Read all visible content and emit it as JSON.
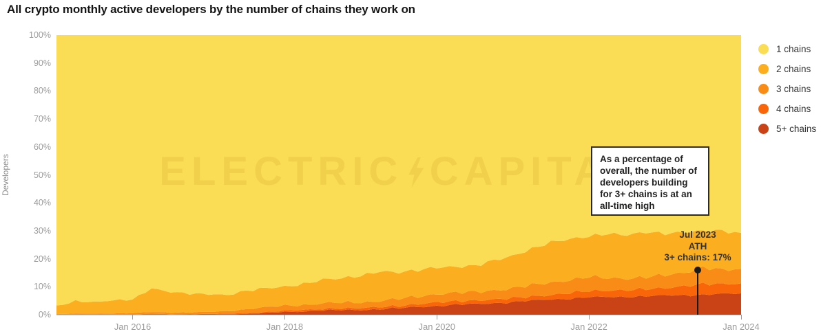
{
  "title": "All crypto monthly active developers by the number of chains they work on",
  "watermark": {
    "left": "ELECTRIC",
    "right": "CAPITAL",
    "icon": "lightning-bolt"
  },
  "y_axis": {
    "title": "Developers",
    "ticks": [
      "0%",
      "10%",
      "20%",
      "30%",
      "40%",
      "50%",
      "60%",
      "70%",
      "80%",
      "90%",
      "100%"
    ]
  },
  "x_axis": {
    "ticks": [
      "Jan 2016",
      "Jan 2018",
      "Jan 2020",
      "Jan 2022",
      "Jan 2024"
    ]
  },
  "legend": {
    "items": [
      {
        "label": "1 chains",
        "color": "#FBDC55"
      },
      {
        "label": "2 chains",
        "color": "#FBAE1F"
      },
      {
        "label": "3 chains",
        "color": "#F98C16"
      },
      {
        "label": "4 chains",
        "color": "#F9660A"
      },
      {
        "label": "5+ chains",
        "color": "#C94317"
      }
    ]
  },
  "callout": {
    "lines": [
      "As a percentage of",
      "overall, the number of",
      "developers building",
      "for 3+ chains is at an",
      "all-time high"
    ]
  },
  "ath": {
    "lines": [
      "Jul 2023",
      "ATH",
      "3+ chains: 17%"
    ]
  },
  "chart_data": {
    "type": "area",
    "stacked": true,
    "normalized_percent": true,
    "title": "All crypto monthly active developers by the number of chains they work on",
    "ylabel": "Developers",
    "ylim": [
      0,
      100
    ],
    "grid": false,
    "legend_position": "right",
    "x_range": [
      "2015-01",
      "2024-01"
    ],
    "x": [
      "2015-01",
      "2015-04",
      "2015-07",
      "2015-10",
      "2016-01",
      "2016-04",
      "2016-07",
      "2016-10",
      "2017-01",
      "2017-04",
      "2017-07",
      "2017-10",
      "2018-01",
      "2018-04",
      "2018-07",
      "2018-10",
      "2019-01",
      "2019-04",
      "2019-07",
      "2019-10",
      "2020-01",
      "2020-04",
      "2020-07",
      "2020-10",
      "2021-01",
      "2021-04",
      "2021-07",
      "2021-10",
      "2022-01",
      "2022-04",
      "2022-07",
      "2022-10",
      "2023-01",
      "2023-04",
      "2023-07",
      "2023-10",
      "2024-01"
    ],
    "series": [
      {
        "name": "1 chains",
        "color": "#FBDC55",
        "values": [
          97,
          95,
          95.5,
          95,
          94.5,
          90.5,
          92,
          92.5,
          92.5,
          93,
          91.5,
          90.5,
          90,
          89,
          87.5,
          87,
          86,
          84.5,
          85,
          84,
          83,
          83,
          82.5,
          80.5,
          79,
          76.5,
          74,
          73,
          72,
          71,
          71.5,
          70.5,
          71,
          70.5,
          70,
          70,
          71
        ]
      },
      {
        "name": "2 chains",
        "color": "#FBAE1F",
        "values": [
          2.7,
          4.6,
          4.1,
          4.5,
          5,
          8.5,
          7.2,
          6.7,
          6.5,
          5.7,
          6.5,
          6.9,
          6.8,
          7.4,
          8.5,
          8.8,
          9.5,
          10.5,
          9.5,
          9.5,
          9.5,
          9.2,
          9.5,
          10.7,
          11.5,
          13,
          14.5,
          14.5,
          14.5,
          16,
          15.5,
          16,
          15,
          14.5,
          13,
          14,
          13
        ]
      },
      {
        "name": "3 chains",
        "color": "#F98C16",
        "values": [
          0.2,
          0.3,
          0.3,
          0.4,
          0.4,
          0.7,
          0.6,
          0.6,
          0.7,
          0.9,
          1.4,
          1.7,
          1.7,
          1.8,
          2,
          2,
          2,
          2.2,
          2.5,
          2.7,
          3,
          3,
          3,
          3.3,
          3.5,
          4,
          4.5,
          4.7,
          5,
          4.4,
          4.2,
          4.3,
          4.5,
          4.8,
          6,
          5,
          5
        ]
      },
      {
        "name": "4 chains",
        "color": "#F9660A",
        "values": [
          0.05,
          0.05,
          0.05,
          0.05,
          0.05,
          0.2,
          0.1,
          0.1,
          0.2,
          0.2,
          0.3,
          0.3,
          0.5,
          0.6,
          0.5,
          0.6,
          0.7,
          0.8,
          0.8,
          1,
          1.3,
          1.3,
          1.2,
          1.3,
          1.5,
          1.5,
          1.5,
          2,
          2.3,
          2.3,
          2.3,
          2.6,
          2.7,
          3.2,
          3.8,
          3.6,
          3.5
        ]
      },
      {
        "name": "5+ chains",
        "color": "#C94317",
        "values": [
          0.05,
          0.05,
          0.05,
          0.05,
          0.05,
          0.1,
          0.1,
          0.1,
          0.1,
          0.2,
          0.3,
          0.6,
          1,
          1.2,
          1.5,
          1.6,
          1.8,
          2,
          2.2,
          2.8,
          3.2,
          3.5,
          3.8,
          4.2,
          4.5,
          5,
          5.5,
          5.8,
          6.2,
          6.3,
          6.5,
          6.6,
          6.8,
          7,
          7.2,
          7.4,
          7.5
        ]
      }
    ],
    "stack_order_bottom_to_top": [
      "5+ chains",
      "4 chains",
      "3 chains",
      "2 chains",
      "1 chains"
    ],
    "annotation_point": {
      "x": "2023-07",
      "boundary": "3+ chains share",
      "value_percent": 17
    }
  }
}
